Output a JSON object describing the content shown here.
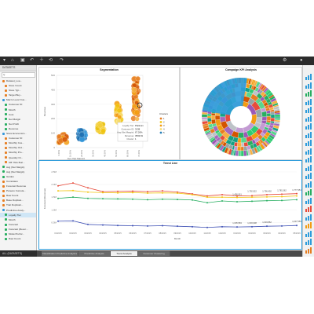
{
  "toolbar": {
    "items": [
      "▾",
      "⌂",
      "▾",
      "↶",
      "▾",
      "⟲"
    ]
  },
  "left": {
    "header": "DATASETS",
    "search_placeholder": "Q",
    "tree": [
      {
        "label": "Dataset_Loa...",
        "color": "#e67e22",
        "indent": 1
      },
      {
        "label": "Store Count",
        "color": "#e67e22",
        "indent": 2
      },
      {
        "label": "Store Typ...",
        "color": "#e67e22",
        "indent": 2
      },
      {
        "label": "Target Buy...",
        "color": "#e67e22",
        "indent": 2
      },
      {
        "label": "Macro Level Cus...",
        "color": "#3498db",
        "indent": 1
      },
      {
        "label": "Customer ID",
        "color": "#27ae60",
        "indent": 2
      },
      {
        "label": "Month",
        "color": "#27ae60",
        "indent": 2
      },
      {
        "label": "Cost",
        "color": "#27ae60",
        "indent": 2
      },
      {
        "label": "Net Margin",
        "color": "#27ae60",
        "indent": 2
      },
      {
        "label": "Net Profit",
        "color": "#27ae60",
        "indent": 2
      },
      {
        "label": "Revenue",
        "color": "#27ae60",
        "indent": 2
      },
      {
        "label": "Store Economics...",
        "color": "#3498db",
        "indent": 1
      },
      {
        "label": "Customer ID",
        "color": "#e67e22",
        "indent": 2
      },
      {
        "label": "Monthly Cus...",
        "color": "#e67e22",
        "indent": 2
      },
      {
        "label": "Monthly Ord...",
        "color": "#e67e22",
        "indent": 2
      },
      {
        "label": "Monthly Pro...",
        "color": "#e67e22",
        "indent": 2
      },
      {
        "label": "Quantity Or...",
        "color": "#e67e22",
        "indent": 2
      },
      {
        "label": "UB YNG Buri...",
        "color": "#e67e22",
        "indent": 2
      },
      {
        "label": "Avg (Net Margin)",
        "color": "#27ae60",
        "indent": 1
      },
      {
        "label": "Avg (Net Margin)",
        "color": "#27ae60",
        "indent": 1
      },
      {
        "label": "Guides",
        "color": "#27ae60",
        "indent": 1
      },
      {
        "label": "Cumulates",
        "color": "#e67e22",
        "indent": 1
      },
      {
        "label": "Forecast Revenue",
        "color": "#e67e22",
        "indent": 1
      },
      {
        "label": "Pareeto Cumula...",
        "color": "#e67e22",
        "indent": 1
      },
      {
        "label": "Raw Count",
        "color": "#e67e22",
        "indent": 1
      },
      {
        "label": "Base Duplicat...",
        "color": "#e67e22",
        "indent": 1
      },
      {
        "label": "Trait Duplicati...",
        "color": "#e67e22",
        "indent": 1
      },
      {
        "label": "Predictive Analy...",
        "color": "#3498db",
        "indent": 1
      },
      {
        "label": "Loyalty Tier",
        "color": "#27ae60",
        "indent": 2,
        "selected": true
      },
      {
        "label": "Month",
        "color": "#27ae60",
        "indent": 2
      },
      {
        "label": "Forecast",
        "color": "#27ae60",
        "indent": 2
      },
      {
        "label": "Forecast (Rever...",
        "color": "#27ae60",
        "indent": 2
      },
      {
        "label": "Model Perfor...",
        "color": "#27ae60",
        "indent": 2
      },
      {
        "label": "Raw Count",
        "color": "#27ae60",
        "indent": 2
      }
    ],
    "footer": "ALL (DATASETS)"
  },
  "segmentation": {
    "title": "Segmentation",
    "ylabel": "Revenue",
    "xlabel": "Avg (Net Margin)",
    "x_ticks": [
      "0.00%",
      "10.00%",
      "20.00%",
      "30.00%",
      "40.00%",
      "50.00%",
      "60.00%",
      "70.00%"
    ],
    "y_ticks": [
      "500",
      "400",
      "300",
      "200",
      "100",
      "0"
    ],
    "legend_title": "Clusters",
    "legend": [
      "1",
      "2",
      "3",
      "4",
      "5"
    ],
    "tooltip": {
      "lines": [
        {
          "k": "Loyalty Tier:",
          "v": "Platinum"
        },
        {
          "k": "Customer ID:",
          "v": "3138"
        },
        {
          "k": "Avg (Net Margin):",
          "v": "67.26%"
        },
        {
          "k": "Revenue:",
          "v": "3593.81"
        },
        {
          "k": "Cluster:",
          "v": "1"
        }
      ]
    }
  },
  "kpi": {
    "title": "Campaign KPI Analysis"
  },
  "trend": {
    "title": "Trend Line",
    "ylabel": "Forecast (Revenue)",
    "xlabel": "Month",
    "x_ticks": [
      "01/2015",
      "02/2015",
      "03/2015",
      "04/2015",
      "05/2015",
      "06/2015",
      "07/2015",
      "08/2015",
      "09/2015",
      "10/2015",
      "11/2015",
      "12/2015",
      "01/2016",
      "02/2016",
      "03/2016",
      "04/2016",
      "05/2016"
    ],
    "y_ticks": [
      "2.5M",
      "2.0M",
      "1.5M",
      "1.0M",
      "0.5M"
    ],
    "labels": [
      "1,456,061",
      "1,792,522",
      "1,796,402",
      "1,781,562",
      "1,777,951",
      "1,005,583",
      "1,003,908",
      "1,019,862",
      "1,037,569"
    ]
  },
  "tabs": [
    "Classification Predictive Analytics",
    "Predictive Analysis",
    "Trend Analysis",
    "Customer Clustering"
  ],
  "colors": {
    "accent": "#2d9cdb",
    "toolbar": "#2b2b2b"
  }
}
